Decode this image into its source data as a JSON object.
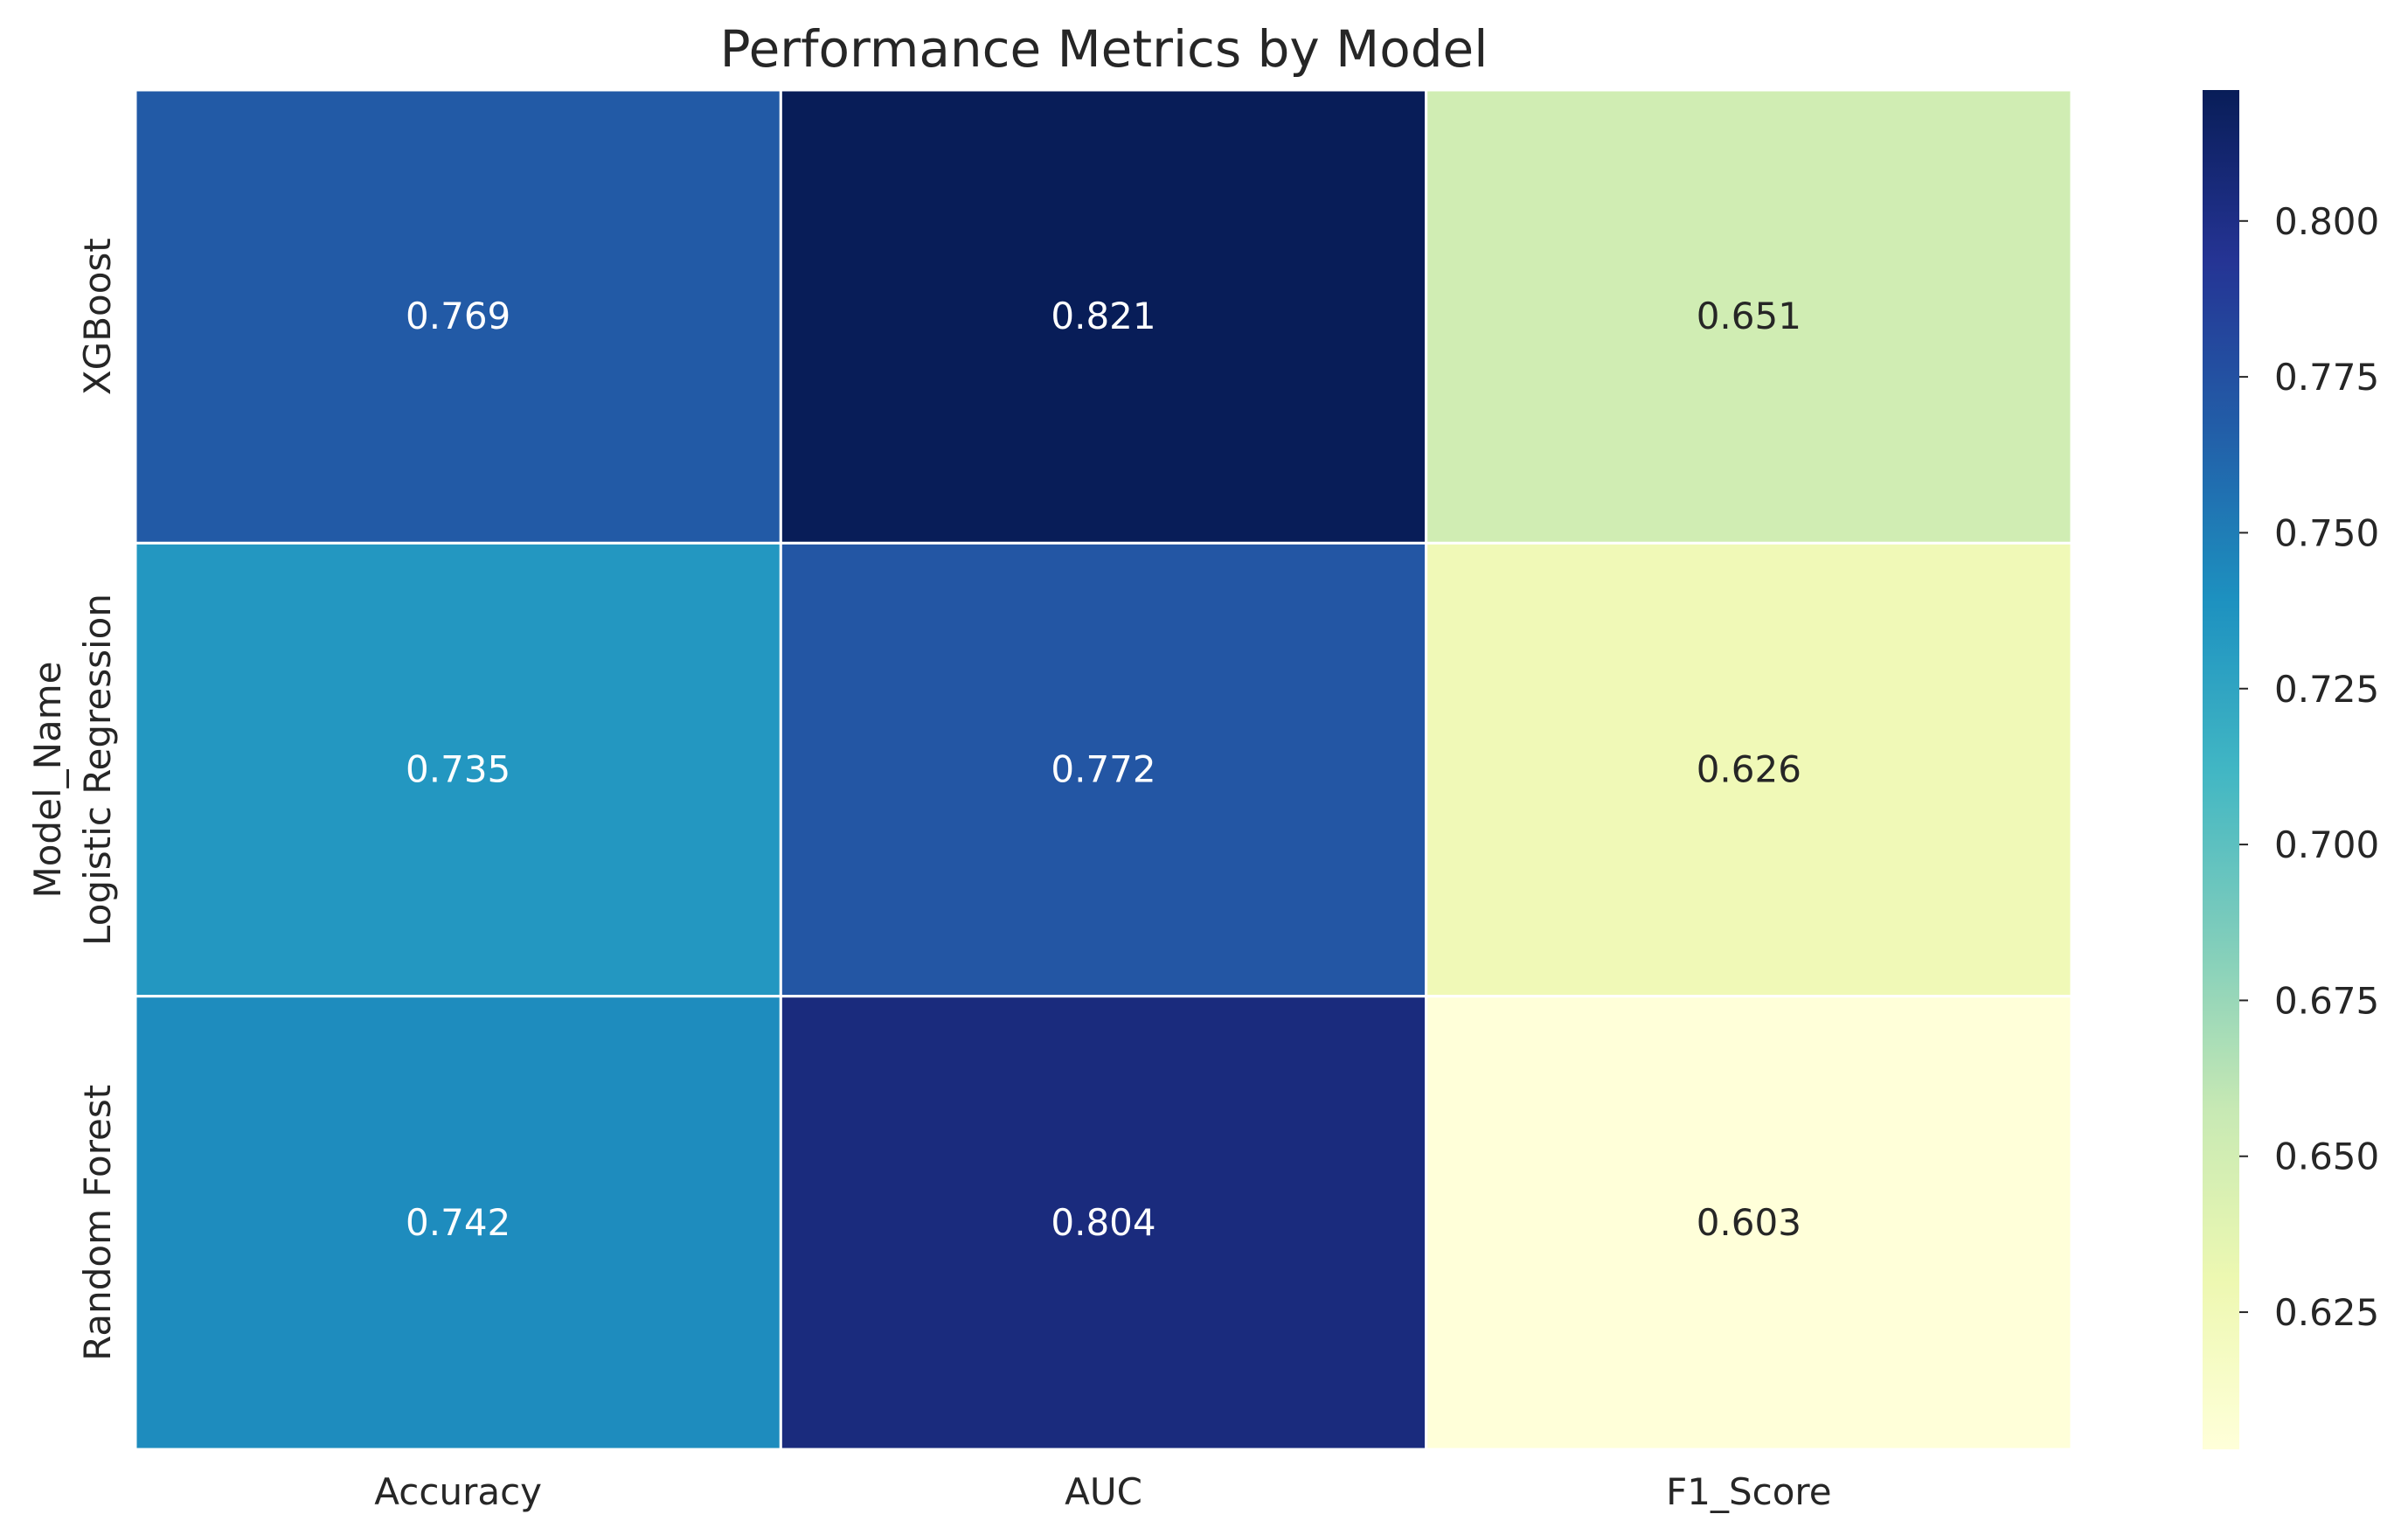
{
  "chart_data": {
    "type": "heatmap",
    "title": "Performance Metrics by Model",
    "xlabel": "",
    "ylabel": "Model_Name",
    "columns": [
      "Accuracy",
      "AUC",
      "F1_Score"
    ],
    "rows": [
      "XGBoost",
      "Logistic Regression",
      "Random Forest"
    ],
    "values": [
      [
        0.769,
        0.821,
        0.651
      ],
      [
        0.735,
        0.772,
        0.626
      ],
      [
        0.742,
        0.804,
        0.603
      ]
    ],
    "value_labels": [
      [
        "0.769",
        "0.821",
        "0.651"
      ],
      [
        "0.735",
        "0.772",
        "0.626"
      ],
      [
        "0.742",
        "0.804",
        "0.603"
      ]
    ],
    "colormap": "YlGnBu",
    "vmin": 0.603,
    "vmax": 0.821,
    "colorbar_ticks": [
      0.625,
      0.65,
      0.675,
      0.7,
      0.725,
      0.75,
      0.775,
      0.8
    ],
    "colorbar_tick_labels": [
      "0.625",
      "0.650",
      "0.675",
      "0.700",
      "0.725",
      "0.750",
      "0.775",
      "0.800"
    ],
    "cell_border_color": "#ffffff",
    "annotation_text_colors": {
      "light": "#ffffff",
      "dark": "#262626"
    },
    "label_color": "#262626",
    "grid": false
  }
}
